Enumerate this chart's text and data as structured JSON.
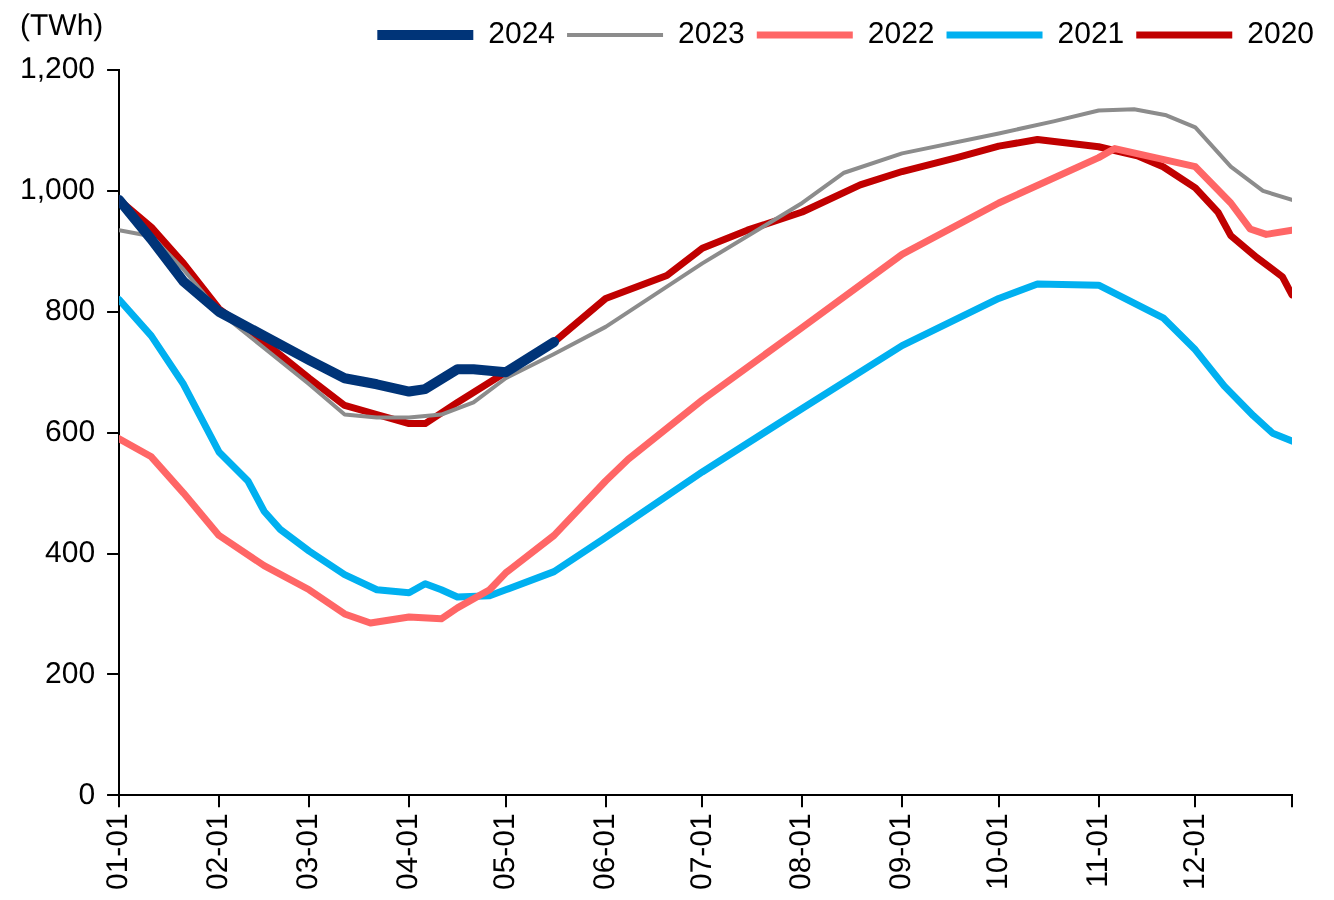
{
  "chart_data": {
    "type": "line",
    "ylabel": "(TWh)",
    "legend": "top right",
    "marker": "none",
    "line_style": "solid",
    "grid": false,
    "xlim": [
      "--01-01",
      "--12-31"
    ],
    "ylim": [
      0,
      1200
    ],
    "xticks": [
      {
        "value": "--01-01",
        "label": "01-01"
      },
      {
        "value": "--02-01",
        "label": "02-01"
      },
      {
        "value": "--03-01",
        "label": "03-01"
      },
      {
        "value": "--04-01",
        "label": "04-01"
      },
      {
        "value": "--05-01",
        "label": "05-01"
      },
      {
        "value": "--06-01",
        "label": "06-01"
      },
      {
        "value": "--07-01",
        "label": "07-01"
      },
      {
        "value": "--08-01",
        "label": "08-01"
      },
      {
        "value": "--09-01",
        "label": "09-01"
      },
      {
        "value": "--10-01",
        "label": "10-01"
      },
      {
        "value": "--11-01",
        "label": "11-01"
      },
      {
        "value": "--12-01",
        "label": "12-01"
      },
      {
        "value": "--12-31",
        "label": null
      }
    ],
    "yticks": [
      0,
      200,
      400,
      600,
      800,
      {
        "value": 1000,
        "label": "1,000"
      },
      {
        "value": 1200,
        "label": "1,200"
      }
    ],
    "series": [
      {
        "name": "2024",
        "color": "#003478",
        "x": [
          "--01-01",
          "--01-11",
          "--01-21",
          "--02-01",
          "--02-15",
          "--03-01",
          "--03-12",
          "--03-22",
          "--04-01",
          "--04-06",
          "--04-16",
          "--04-21",
          "--05-01",
          "--05-16"
        ],
        "values": [
          985,
          920,
          850,
          800,
          760,
          720,
          690,
          680,
          668,
          672,
          705,
          705,
          700,
          750
        ]
      },
      {
        "name": "2023",
        "color": "#8c8c8c",
        "x": [
          "--01-01",
          "--01-11",
          "--01-21",
          "--02-01",
          "--02-15",
          "--03-01",
          "--03-12",
          "--03-22",
          "--04-01",
          "--04-11",
          "--04-21",
          "--05-01",
          "--05-16",
          "--06-01",
          "--07-01",
          "--08-01",
          "--08-14",
          "--09-01",
          "--10-01",
          "--10-18",
          "--11-01",
          "--11-12",
          "--11-22",
          "--12-01",
          "--12-12",
          "--12-22",
          "--12-31"
        ],
        "values": [
          935,
          925,
          870,
          800,
          740,
          680,
          630,
          625,
          625,
          630,
          650,
          690,
          730,
          775,
          880,
          980,
          1030,
          1062,
          1095,
          1115,
          1133,
          1135,
          1125,
          1105,
          1040,
          1000,
          985
        ]
      },
      {
        "name": "2022",
        "color": "#ff6666",
        "x": [
          "--01-01",
          "--01-11",
          "--01-21",
          "--02-01",
          "--02-15",
          "--03-01",
          "--03-12",
          "--03-20",
          "--04-01",
          "--04-11",
          "--04-16",
          "--04-26",
          "--05-01",
          "--05-16",
          "--06-01",
          "--06-08",
          "--07-01",
          "--08-01",
          "--09-01",
          "--10-01",
          "--11-01",
          "--11-06",
          "--12-01",
          "--12-12",
          "--12-18",
          "--12-23",
          "--12-31"
        ],
        "values": [
          590,
          560,
          500,
          430,
          380,
          340,
          300,
          285,
          295,
          292,
          310,
          340,
          368,
          430,
          520,
          556,
          654,
          774,
          895,
          980,
          1055,
          1070,
          1040,
          980,
          937,
          928,
          935
        ]
      },
      {
        "name": "2021",
        "color": "#00b0f0",
        "x": [
          "--01-01",
          "--01-11",
          "--01-21",
          "--02-01",
          "--02-10",
          "--02-15",
          "--02-20",
          "--03-01",
          "--03-12",
          "--03-22",
          "--04-01",
          "--04-06",
          "--04-11",
          "--04-16",
          "--04-26",
          "--05-01",
          "--05-16",
          "--05-31",
          "--07-01",
          "--08-01",
          "--09-01",
          "--10-01",
          "--10-13",
          "--11-01",
          "--11-21",
          "--12-01",
          "--12-10",
          "--12-19",
          "--12-25",
          "--12-31"
        ],
        "values": [
          820,
          760,
          680,
          568,
          520,
          470,
          440,
          404,
          365,
          340,
          335,
          350,
          340,
          328,
          330,
          340,
          370,
          423,
          535,
          640,
          744,
          822,
          846,
          844,
          790,
          737,
          677,
          628,
          599,
          586
        ]
      },
      {
        "name": "2020",
        "color": "#c00000",
        "x": [
          "--01-01",
          "--01-11",
          "--01-21",
          "--02-01",
          "--02-15",
          "--03-01",
          "--03-12",
          "--03-22",
          "--04-01",
          "--04-06",
          "--04-16",
          "--05-01",
          "--05-16",
          "--06-01",
          "--06-20",
          "--07-01",
          "--07-15",
          "--08-01",
          "--08-19",
          "--09-01",
          "--09-18",
          "--10-01",
          "--10-13",
          "--11-01",
          "--11-13",
          "--11-21",
          "--12-01",
          "--12-08",
          "--12-12",
          "--12-20",
          "--12-28",
          "--12-31"
        ],
        "values": [
          985,
          940,
          880,
          805,
          750,
          690,
          645,
          630,
          615,
          615,
          650,
          700,
          750,
          822,
          860,
          905,
          935,
          965,
          1010,
          1032,
          1055,
          1074,
          1085,
          1073,
          1058,
          1040,
          1005,
          965,
          926,
          890,
          858,
          828
        ]
      }
    ]
  }
}
